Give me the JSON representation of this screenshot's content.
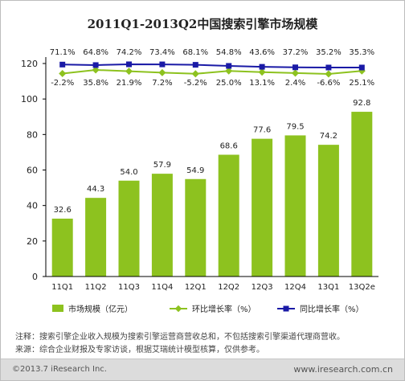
{
  "chart_data": {
    "type": "bar",
    "title": "2011Q1-2013Q2中国搜索引擎市场规模",
    "categories": [
      "11Q1",
      "11Q2",
      "11Q3",
      "11Q4",
      "12Q1",
      "12Q2",
      "12Q3",
      "12Q4",
      "13Q1",
      "13Q2e"
    ],
    "ylim": [
      0,
      120
    ],
    "yticks": [
      0,
      20,
      40,
      60,
      80,
      100,
      120
    ],
    "series": [
      {
        "name": "市场规模（亿元）",
        "type": "bar",
        "color": "#8dc21f",
        "values": [
          32.6,
          44.3,
          54.0,
          57.9,
          54.9,
          68.6,
          77.6,
          79.5,
          74.2,
          92.8
        ],
        "labels": [
          "32.6",
          "44.3",
          "54.0",
          "57.9",
          "54.9",
          "68.6",
          "77.6",
          "79.5",
          "74.2",
          "92.8"
        ]
      },
      {
        "name": "环比增长率（%）",
        "type": "line",
        "color": "#8dc21f",
        "values": [
          -2.2,
          35.8,
          21.9,
          7.2,
          -5.2,
          25.0,
          13.1,
          2.4,
          -6.6,
          25.1
        ],
        "labels": [
          "-2.2%",
          "35.8%",
          "21.9%",
          "7.2%",
          "-5.2%",
          "25.0%",
          "13.1%",
          "2.4%",
          "-6.6%",
          "25.1%"
        ]
      },
      {
        "name": "同比增长率（%）",
        "type": "line",
        "color": "#1a1aa6",
        "values": [
          71.1,
          64.8,
          74.2,
          73.4,
          68.1,
          54.8,
          43.6,
          37.2,
          35.2,
          35.3
        ],
        "labels": [
          "71.1%",
          "64.8%",
          "74.2%",
          "73.4%",
          "68.1%",
          "54.8%",
          "43.6%",
          "37.2%",
          "35.2%",
          "35.3%"
        ]
      }
    ],
    "legend": "bottom",
    "grid": false
  },
  "notes": {
    "note1": "注释：搜索引擎企业收入规模为搜索引擎运营商营收总和，不包括搜索引擎渠道代理商营收。",
    "note2": "来源：综合企业财报及专家访谈，根据艾瑞统计模型核算，仅供参考。"
  },
  "footer": {
    "copyright": "©2013.7 iResearch Inc.",
    "website": "www.iresearch.com.cn"
  }
}
